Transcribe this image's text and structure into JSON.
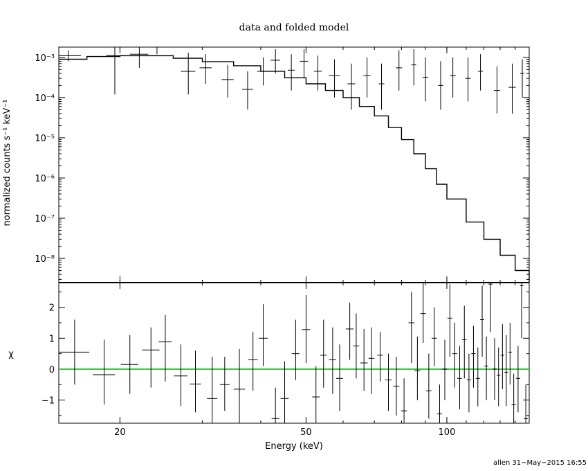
{
  "chart_data": [
    {
      "type": "scatter",
      "title": "data and folded model",
      "ylabel": "normalized counts s⁻¹ keV⁻¹",
      "xlabel": "",
      "x_scale": "log",
      "y_scale": "log",
      "xlim": [
        14.8,
        150
      ],
      "ylim": [
        2.5e-09,
        0.0018
      ],
      "x_ticks": [
        {
          "value": 20,
          "label": "20"
        },
        {
          "value": 50,
          "label": "50"
        },
        {
          "value": 100,
          "label": "100"
        }
      ],
      "y_ticks": [
        {
          "value": 0.001,
          "label": "10⁻³"
        },
        {
          "value": 0.0001,
          "label": "10⁻⁴"
        },
        {
          "value": 1e-05,
          "label": "10⁻⁵"
        },
        {
          "value": 1e-06,
          "label": "10⁻⁶"
        },
        {
          "value": 1e-07,
          "label": "10⁻⁷"
        },
        {
          "value": 1e-08,
          "label": "10⁻⁸"
        }
      ],
      "data_points": [
        {
          "x": 15.5,
          "xerr": 1.0,
          "y": 0.0011,
          "ylo": 0.0008,
          "yhi": 0.0015
        },
        {
          "x": 19.5,
          "xerr": 0.8,
          "y": 0.0011,
          "ylo": 0.00012,
          "yhi": 0.0018
        },
        {
          "x": 22.0,
          "xerr": 1.0,
          "y": 0.0012,
          "ylo": 0.00055,
          "yhi": 0.0018
        },
        {
          "x": 24.0,
          "xerr": 0.8,
          "y": 0.0018,
          "ylo": 0.0012,
          "yhi": 0.0018
        },
        {
          "x": 28.0,
          "xerr": 1.0,
          "y": 0.00045,
          "ylo": 0.00012,
          "yhi": 0.0013
        },
        {
          "x": 30.5,
          "xerr": 0.9,
          "y": 0.00055,
          "ylo": 0.00022,
          "yhi": 0.0012
        },
        {
          "x": 34.0,
          "xerr": 1.0,
          "y": 0.00028,
          "ylo": 0.0001,
          "yhi": 0.00065
        },
        {
          "x": 37.5,
          "xerr": 1.0,
          "y": 0.00016,
          "ylo": 5e-05,
          "yhi": 0.00045
        },
        {
          "x": 40.5,
          "xerr": 1.2,
          "y": 0.00045,
          "ylo": 0.0002,
          "yhi": 0.001
        },
        {
          "x": 43.0,
          "xerr": 1.0,
          "y": 0.00085,
          "ylo": 0.0004,
          "yhi": 0.0016
        },
        {
          "x": 46.5,
          "xerr": 0.8,
          "y": 0.00048,
          "ylo": 0.00015,
          "yhi": 0.0012
        },
        {
          "x": 49.5,
          "xerr": 1.0,
          "y": 0.0008,
          "ylo": 0.0003,
          "yhi": 0.0016
        },
        {
          "x": 53.0,
          "xerr": 1.0,
          "y": 0.00045,
          "ylo": 0.00015,
          "yhi": 0.0011
        },
        {
          "x": 57.5,
          "xerr": 1.5,
          "y": 0.00035,
          "ylo": 0.0001,
          "yhi": 0.0009
        },
        {
          "x": 62.5,
          "xerr": 1.2,
          "y": 0.00022,
          "ylo": 5e-05,
          "yhi": 0.0007
        },
        {
          "x": 67.5,
          "xerr": 1.2,
          "y": 0.00035,
          "ylo": 0.0001,
          "yhi": 0.001
        },
        {
          "x": 72.5,
          "xerr": 1.0,
          "y": 0.00022,
          "ylo": 5e-05,
          "yhi": 0.0007
        },
        {
          "x": 79.0,
          "xerr": 1.2,
          "y": 0.00055,
          "ylo": 0.00015,
          "yhi": 0.0015
        },
        {
          "x": 85.0,
          "xerr": 1.0,
          "y": 0.00065,
          "ylo": 0.0002,
          "yhi": 0.0016
        },
        {
          "x": 90.0,
          "xerr": 1.2,
          "y": 0.00032,
          "ylo": 8e-05,
          "yhi": 0.001
        },
        {
          "x": 97.0,
          "xerr": 1.2,
          "y": 0.0002,
          "ylo": 5e-05,
          "yhi": 0.0008
        },
        {
          "x": 103.0,
          "xerr": 1.5,
          "y": 0.00035,
          "ylo": 0.0001,
          "yhi": 0.001
        },
        {
          "x": 111.0,
          "xerr": 1.5,
          "y": 0.0003,
          "ylo": 8e-05,
          "yhi": 0.001
        },
        {
          "x": 118.0,
          "xerr": 1.5,
          "y": 0.00045,
          "ylo": 0.00015,
          "yhi": 0.0012
        },
        {
          "x": 128.0,
          "xerr": 2.0,
          "y": 0.00015,
          "ylo": 4e-05,
          "yhi": 0.0006
        },
        {
          "x": 138.0,
          "xerr": 2.5,
          "y": 0.00018,
          "ylo": 4e-05,
          "yhi": 0.0007
        },
        {
          "x": 145.0,
          "xerr": 1.5,
          "y": 0.0004,
          "ylo": 0.0001,
          "yhi": 0.0009
        }
      ],
      "model": [
        {
          "x": 14.8,
          "y": 0.0009
        },
        {
          "x": 17.0,
          "y": 0.00105
        },
        {
          "x": 20.0,
          "y": 0.0011
        },
        {
          "x": 23.0,
          "y": 0.0011
        },
        {
          "x": 26.0,
          "y": 0.00095
        },
        {
          "x": 30.0,
          "y": 0.00078
        },
        {
          "x": 35.0,
          "y": 0.00062
        },
        {
          "x": 40.0,
          "y": 0.00045
        },
        {
          "x": 45.0,
          "y": 0.00031
        },
        {
          "x": 50.0,
          "y": 0.00022
        },
        {
          "x": 55.0,
          "y": 0.00015
        },
        {
          "x": 60.0,
          "y": 0.0001
        },
        {
          "x": 65.0,
          "y": 6e-05
        },
        {
          "x": 70.0,
          "y": 3.5e-05
        },
        {
          "x": 75.0,
          "y": 1.8e-05
        },
        {
          "x": 80.0,
          "y": 9e-06
        },
        {
          "x": 85.0,
          "y": 4e-06
        },
        {
          "x": 90.0,
          "y": 1.7e-06
        },
        {
          "x": 95.0,
          "y": 7e-07
        },
        {
          "x": 100.0,
          "y": 3e-07
        },
        {
          "x": 110.0,
          "y": 8e-08
        },
        {
          "x": 120.0,
          "y": 3e-08
        },
        {
          "x": 130.0,
          "y": 1.2e-08
        },
        {
          "x": 140.0,
          "y": 5e-09
        },
        {
          "x": 150.0,
          "y": 2.6e-09
        }
      ]
    },
    {
      "type": "scatter",
      "xlabel": "Energy (keV)",
      "ylabel": "χ",
      "x_scale": "log",
      "xlim": [
        14.8,
        150
      ],
      "ylim": [
        -1.75,
        2.8
      ],
      "x_ticks": [
        {
          "value": 20,
          "label": "20"
        },
        {
          "value": 50,
          "label": "50"
        },
        {
          "value": 100,
          "label": "100"
        }
      ],
      "y_ticks": [
        {
          "value": 2,
          "label": "2"
        },
        {
          "value": 1,
          "label": "1"
        },
        {
          "value": 0,
          "label": "0"
        },
        {
          "value": -1,
          "label": "−1"
        }
      ],
      "reference_line": {
        "y": 0,
        "color": "#22dd22"
      },
      "data_points": [
        {
          "x": 16.0,
          "xerr": 1.2,
          "y": 0.55,
          "ylo": -0.5,
          "yhi": 1.6
        },
        {
          "x": 18.5,
          "xerr": 1.0,
          "y": -0.18,
          "ylo": -1.15,
          "yhi": 0.95
        },
        {
          "x": 21.0,
          "xerr": 0.9,
          "y": 0.15,
          "ylo": -0.8,
          "yhi": 1.1
        },
        {
          "x": 23.3,
          "xerr": 1.0,
          "y": 0.62,
          "ylo": -0.6,
          "yhi": 1.35
        },
        {
          "x": 25.0,
          "xerr": 0.8,
          "y": 0.88,
          "ylo": -0.4,
          "yhi": 1.75
        },
        {
          "x": 27.0,
          "xerr": 0.9,
          "y": -0.22,
          "ylo": -1.2,
          "yhi": 0.8
        },
        {
          "x": 29.0,
          "xerr": 0.8,
          "y": -0.48,
          "ylo": -1.4,
          "yhi": 0.6
        },
        {
          "x": 31.5,
          "xerr": 0.8,
          "y": -0.95,
          "ylo": -1.75,
          "yhi": 0.4
        },
        {
          "x": 33.5,
          "xerr": 0.8,
          "y": -0.5,
          "ylo": -1.35,
          "yhi": 0.4
        },
        {
          "x": 36.0,
          "xerr": 1.0,
          "y": -0.65,
          "ylo": -1.75,
          "yhi": 0.65
        },
        {
          "x": 38.5,
          "xerr": 0.9,
          "y": 0.3,
          "ylo": -0.7,
          "yhi": 1.2
        },
        {
          "x": 40.5,
          "xerr": 0.9,
          "y": 1.0,
          "ylo": 0.1,
          "yhi": 2.1
        },
        {
          "x": 43.0,
          "xerr": 0.8,
          "y": -1.6,
          "ylo": -1.75,
          "yhi": -0.6
        },
        {
          "x": 45.0,
          "xerr": 0.9,
          "y": -0.95,
          "ylo": -1.75,
          "yhi": 0.25
        },
        {
          "x": 47.5,
          "xerr": 0.9,
          "y": 0.5,
          "ylo": -0.35,
          "yhi": 1.6
        },
        {
          "x": 50.0,
          "xerr": 1.0,
          "y": 1.28,
          "ylo": 0.2,
          "yhi": 2.4
        },
        {
          "x": 52.5,
          "xerr": 1.0,
          "y": -0.9,
          "ylo": -1.75,
          "yhi": 0.1
        },
        {
          "x": 54.5,
          "xerr": 0.9,
          "y": 0.45,
          "ylo": -0.6,
          "yhi": 1.6
        },
        {
          "x": 57.0,
          "xerr": 1.0,
          "y": 0.3,
          "ylo": -0.8,
          "yhi": 1.35
        },
        {
          "x": 59.0,
          "xerr": 1.0,
          "y": -0.3,
          "ylo": -1.35,
          "yhi": 0.8
        },
        {
          "x": 62.0,
          "xerr": 1.2,
          "y": 1.3,
          "ylo": 0.3,
          "yhi": 2.15
        },
        {
          "x": 64.0,
          "xerr": 1.0,
          "y": 0.75,
          "ylo": -0.3,
          "yhi": 1.8
        },
        {
          "x": 66.5,
          "xerr": 1.2,
          "y": 0.2,
          "ylo": -0.7,
          "yhi": 1.3
        },
        {
          "x": 69.0,
          "xerr": 1.0,
          "y": 0.35,
          "ylo": -0.8,
          "yhi": 1.35
        },
        {
          "x": 72.0,
          "xerr": 1.0,
          "y": 0.45,
          "ylo": -0.4,
          "yhi": 1.2
        },
        {
          "x": 75.0,
          "xerr": 1.2,
          "y": -0.35,
          "ylo": -1.35,
          "yhi": 0.5
        },
        {
          "x": 78.0,
          "xerr": 1.2,
          "y": -0.55,
          "ylo": -1.5,
          "yhi": 0.4
        },
        {
          "x": 81.0,
          "xerr": 1.2,
          "y": -1.35,
          "ylo": -1.75,
          "yhi": -0.3
        },
        {
          "x": 84.0,
          "xerr": 1.2,
          "y": 1.5,
          "ylo": 0.2,
          "yhi": 2.5
        },
        {
          "x": 86.5,
          "xerr": 1.2,
          "y": -0.05,
          "ylo": -1.0,
          "yhi": 1.05
        },
        {
          "x": 89.0,
          "xerr": 1.2,
          "y": 1.8,
          "ylo": 0.85,
          "yhi": 2.8
        },
        {
          "x": 91.5,
          "xerr": 1.2,
          "y": -0.7,
          "ylo": -1.6,
          "yhi": 0.5
        },
        {
          "x": 94.0,
          "xerr": 1.2,
          "y": 1.0,
          "ylo": 0.1,
          "yhi": 2.0
        },
        {
          "x": 96.5,
          "xerr": 1.2,
          "y": -1.45,
          "ylo": -1.75,
          "yhi": -0.5
        },
        {
          "x": 99.0,
          "xerr": 1.2,
          "y": 0.0,
          "ylo": -1.0,
          "yhi": 0.95
        },
        {
          "x": 101.5,
          "xerr": 1.2,
          "y": 1.65,
          "ylo": 0.4,
          "yhi": 2.75
        },
        {
          "x": 104.0,
          "xerr": 1.2,
          "y": 0.5,
          "ylo": -0.6,
          "yhi": 1.5
        },
        {
          "x": 106.5,
          "xerr": 1.2,
          "y": -0.3,
          "ylo": -1.3,
          "yhi": 0.75
        },
        {
          "x": 109.0,
          "xerr": 1.2,
          "y": 0.95,
          "ylo": -0.3,
          "yhi": 2.05
        },
        {
          "x": 111.5,
          "xerr": 1.2,
          "y": -0.35,
          "ylo": -1.4,
          "yhi": 0.5
        },
        {
          "x": 114.0,
          "xerr": 1.2,
          "y": 0.5,
          "ylo": -0.6,
          "yhi": 1.4
        },
        {
          "x": 116.5,
          "xerr": 1.2,
          "y": -0.3,
          "ylo": -1.2,
          "yhi": 0.7
        },
        {
          "x": 119.0,
          "xerr": 1.2,
          "y": 1.6,
          "ylo": 0.4,
          "yhi": 2.7
        },
        {
          "x": 121.5,
          "xerr": 1.2,
          "y": 0.1,
          "ylo": -1.0,
          "yhi": 1.05
        },
        {
          "x": 124.0,
          "xerr": 1.2,
          "y": 2.75,
          "ylo": 1.2,
          "yhi": 2.8
        },
        {
          "x": 126.5,
          "xerr": 1.2,
          "y": 0.0,
          "ylo": -1.0,
          "yhi": 1.0
        },
        {
          "x": 129.0,
          "xerr": 1.2,
          "y": -0.2,
          "ylo": -1.2,
          "yhi": 0.7
        },
        {
          "x": 131.5,
          "xerr": 1.2,
          "y": 0.45,
          "ylo": -0.65,
          "yhi": 1.45
        },
        {
          "x": 134.0,
          "xerr": 1.2,
          "y": -0.1,
          "ylo": -1.2,
          "yhi": 1.1
        },
        {
          "x": 136.5,
          "xerr": 1.2,
          "y": 0.55,
          "ylo": -0.5,
          "yhi": 1.5
        },
        {
          "x": 139.0,
          "xerr": 1.5,
          "y": -1.15,
          "ylo": -1.75,
          "yhi": -0.15
        },
        {
          "x": 142.0,
          "xerr": 1.5,
          "y": -0.3,
          "ylo": -1.4,
          "yhi": 0.75
        },
        {
          "x": 144.5,
          "xerr": 1.2,
          "y": 2.7,
          "ylo": 1.0,
          "yhi": 2.8
        },
        {
          "x": 147.5,
          "xerr": 1.5,
          "y": -1.6,
          "ylo": -1.75,
          "yhi": -0.5
        }
      ]
    }
  ],
  "footer": "allen 31−May−2015 16:55"
}
